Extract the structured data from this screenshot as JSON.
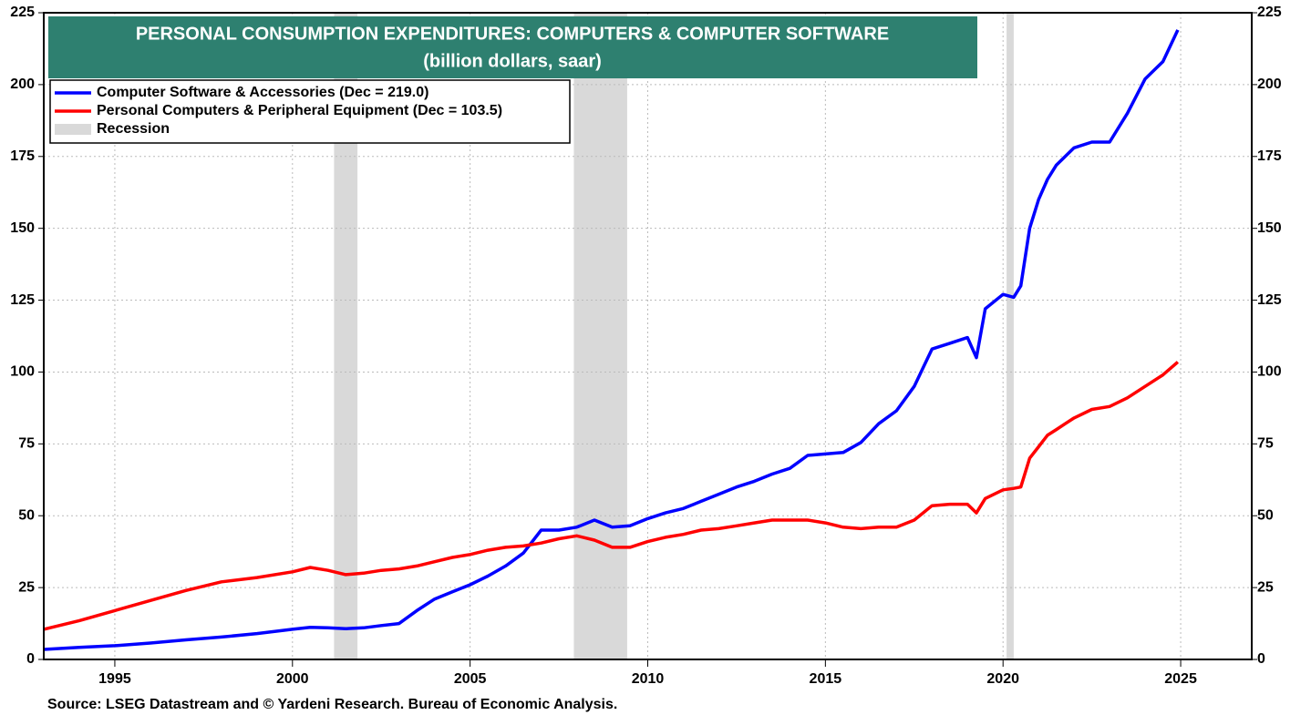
{
  "chart_data": {
    "type": "line",
    "title": "PERSONAL CONSUMPTION EXPENDITURES: COMPUTERS & COMPUTER SOFTWARE",
    "subtitle": "(billion dollars, saar)",
    "source": "Source: LSEG Datastream and © Yardeni Research. Bureau of Economic Analysis.",
    "x": [
      1993,
      1994,
      1995,
      1996,
      1997,
      1998,
      1999,
      2000,
      2000.5,
      2001,
      2001.5,
      2002,
      2002.5,
      2003,
      2003.5,
      2004,
      2004.5,
      2005,
      2005.5,
      2006,
      2006.5,
      2007,
      2007.5,
      2008,
      2008.5,
      2009,
      2009.5,
      2010,
      2010.5,
      2011,
      2011.5,
      2012,
      2012.5,
      2013,
      2013.5,
      2014,
      2014.5,
      2015,
      2015.5,
      2016,
      2016.5,
      2017,
      2017.5,
      2018,
      2018.5,
      2019,
      2019.25,
      2019.5,
      2020,
      2020.3,
      2020.5,
      2020.75,
      2021,
      2021.25,
      2021.5,
      2021.75,
      2022,
      2022.5,
      2023,
      2023.5,
      2024,
      2024.5,
      2024.92
    ],
    "series": [
      {
        "name": "Computer Software & Accessories (Dec = 219.0)",
        "color": "#0000ff",
        "values": [
          3.5,
          4.2,
          4.8,
          5.7,
          6.8,
          7.8,
          9,
          10.5,
          11.2,
          11,
          10.7,
          11,
          11.8,
          12.5,
          17,
          21,
          23.5,
          26,
          29,
          32.5,
          37,
          45,
          45,
          46,
          48.5,
          46,
          46.5,
          49,
          51,
          52.5,
          55,
          57.5,
          60,
          62,
          64.5,
          66.5,
          71,
          71.5,
          72,
          75.5,
          82,
          86.5,
          95,
          108,
          110,
          112,
          105,
          122,
          127,
          126,
          130,
          150,
          160,
          167,
          172,
          175,
          178,
          180,
          180,
          190,
          202,
          208,
          219
        ]
      },
      {
        "name": "Personal Computers & Peripheral Equipment (Dec = 103.5)",
        "color": "#ff0000",
        "values": [
          10.5,
          13.5,
          17,
          20.5,
          24,
          27,
          28.5,
          30.5,
          32,
          31,
          29.5,
          30,
          31,
          31.5,
          32.5,
          34,
          35.5,
          36.5,
          38,
          39,
          39.5,
          40.5,
          42,
          43,
          41.5,
          39,
          39,
          41,
          42.5,
          43.5,
          45,
          45.5,
          46.5,
          47.5,
          48.5,
          48.5,
          48.5,
          47.5,
          46,
          45.5,
          46,
          46,
          48.5,
          53.5,
          54,
          54,
          51,
          56,
          59,
          59.5,
          60,
          70,
          74,
          78,
          80,
          82,
          84,
          87,
          88,
          91,
          95,
          99,
          103.5
        ]
      }
    ],
    "recession_name": "Recession",
    "recession_color": "#d9d9d9",
    "recessions": [
      [
        2001.17,
        2001.83
      ],
      [
        2007.92,
        2009.42
      ],
      [
        2020.1,
        2020.3
      ]
    ],
    "xlim": [
      1993,
      2027
    ],
    "xticks": [
      1995,
      2000,
      2005,
      2010,
      2015,
      2020,
      2025
    ],
    "ylim": [
      0,
      225
    ],
    "yticks": [
      0,
      25,
      50,
      75,
      100,
      125,
      150,
      175,
      200,
      225
    ],
    "y2lim": [
      0,
      225
    ],
    "y2ticks": [
      0,
      25,
      50,
      75,
      100,
      125,
      150,
      175,
      200,
      225
    ],
    "grid": true,
    "legend": "upper left",
    "title_color": "#2e8070"
  }
}
